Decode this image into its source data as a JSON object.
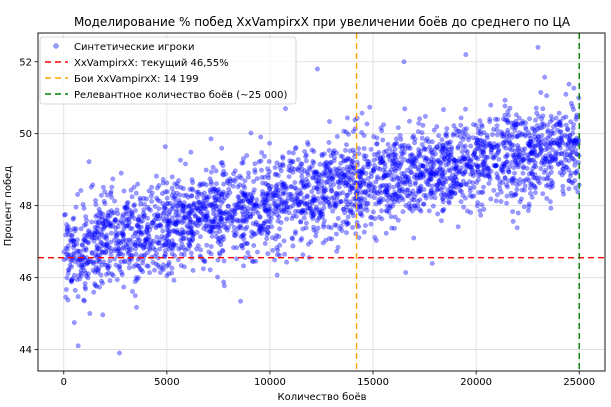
{
  "chart_data": {
    "type": "scatter",
    "title": "Моделирование % побед XxVampirxX при увеличении боёв до среднего по ЦА",
    "xlabel": "Количество боёв",
    "ylabel": "Процент побед",
    "xlim": [
      -1250,
      26250
    ],
    "ylim": [
      43.4,
      52.8
    ],
    "x_ticks": [
      0,
      5000,
      10000,
      15000,
      20000,
      25000
    ],
    "x_tick_labels": [
      "0",
      "5000",
      "10000",
      "15000",
      "20000",
      "25000"
    ],
    "y_ticks": [
      44,
      46,
      48,
      50,
      52
    ],
    "y_tick_labels": [
      "44",
      "46",
      "48",
      "50",
      "52"
    ],
    "grid": true,
    "legend_position": "top-left",
    "series": [
      {
        "name": "Синтетические игроки",
        "kind": "points",
        "color": "#0000ff",
        "opacity": 0.4,
        "point_count": 3000,
        "x_range": [
          0,
          25000
        ],
        "trend": "mean rises from about 46.5 at 0 fights to about 49.7 at 25000 fights; spread about ±1.5",
        "notable_points": [
          [
            2700,
            43.9
          ],
          [
            700,
            44.1
          ],
          [
            19500,
            52.2
          ],
          [
            23000,
            52.4
          ],
          [
            12300,
            51.8
          ],
          [
            16500,
            52.0
          ]
        ]
      },
      {
        "name": "XxVampirxX: текущий 46,55%",
        "kind": "hline",
        "y": 46.55,
        "color": "#ff0000",
        "dash": "6,4"
      },
      {
        "name": "Бои XxVampirxX: 14 199",
        "kind": "vline",
        "x": 14199,
        "color": "#ffa500",
        "dash": "6,4"
      },
      {
        "name": "Релевантное количество боёв (~25 000)",
        "kind": "vline",
        "x": 25000,
        "color": "#008000",
        "dash": "6,4"
      }
    ],
    "colors": {
      "axis": "#000000",
      "grid": "#b0b0b0",
      "legend_border": "#cccccc"
    }
  }
}
